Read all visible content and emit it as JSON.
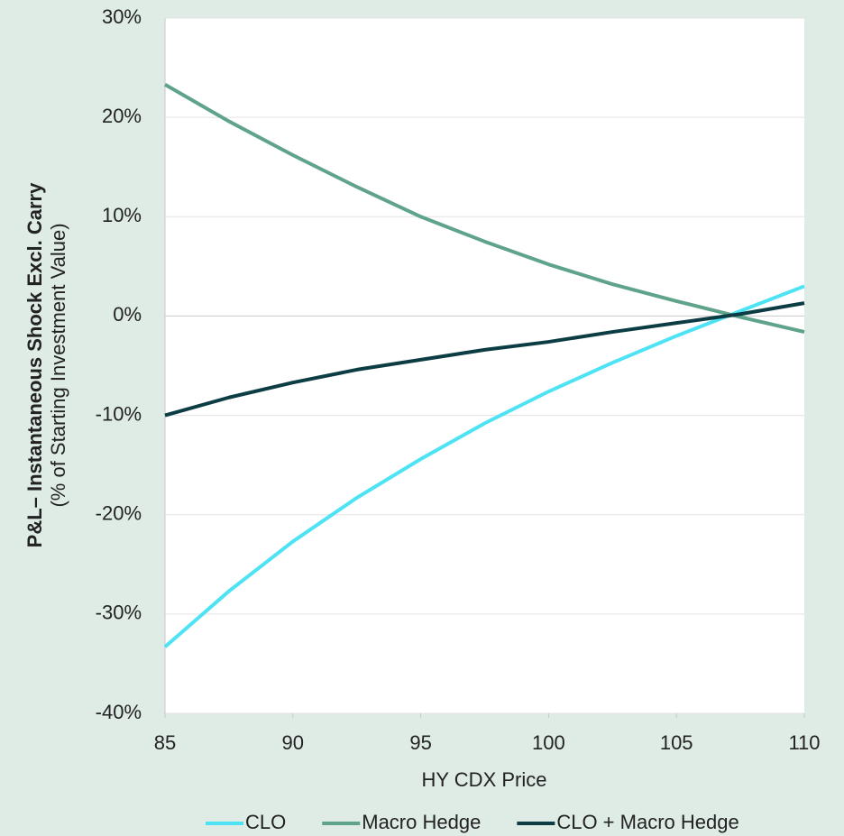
{
  "chart_data": {
    "type": "line",
    "y_label": "P&L– Instantaneous Shock Excl. Carry",
    "y_sublabel": "(% of Starting Investment Value)",
    "x_label": "HY CDX Price",
    "x": [
      85,
      87.5,
      90,
      92.5,
      95,
      97.5,
      100,
      102.5,
      105,
      107.5,
      110
    ],
    "series": [
      {
        "name": "CLO",
        "color": "#4de3f5",
        "values": [
          -33.3,
          -27.7,
          -22.7,
          -18.3,
          -14.4,
          -10.8,
          -7.6,
          -4.7,
          -2.0,
          0.5,
          3.0
        ]
      },
      {
        "name": "Macro Hedge",
        "color": "#5fa38a",
        "values": [
          23.3,
          19.6,
          16.2,
          13.0,
          10.0,
          7.5,
          5.2,
          3.2,
          1.5,
          -0.1,
          -1.6
        ]
      },
      {
        "name": "CLO + Macro Hedge",
        "color": "#0d3d44",
        "values": [
          -10.0,
          -8.2,
          -6.7,
          -5.4,
          -4.4,
          -3.4,
          -2.6,
          -1.6,
          -0.7,
          0.2,
          1.3
        ]
      }
    ],
    "xlim": [
      85,
      110
    ],
    "xticks": [
      85,
      90,
      95,
      100,
      105,
      110
    ],
    "ylim": [
      -40,
      30
    ],
    "yticks": [
      {
        "value": -40,
        "label": "-40%"
      },
      {
        "value": -30,
        "label": "-30%"
      },
      {
        "value": -20,
        "label": "-20%"
      },
      {
        "value": -10,
        "label": "-10%"
      },
      {
        "value": 0,
        "label": "0%"
      },
      {
        "value": 10,
        "label": "10%"
      },
      {
        "value": 20,
        "label": "20%"
      },
      {
        "value": 30,
        "label": "30%"
      }
    ],
    "grid": true,
    "legend": "bottom"
  }
}
